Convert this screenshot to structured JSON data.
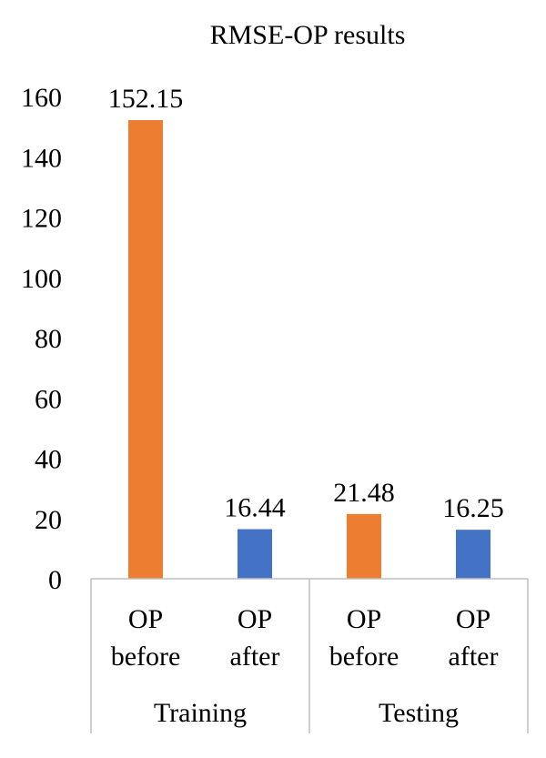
{
  "chart_data": {
    "type": "bar",
    "title": "RMSE-OP results",
    "xlabel": "",
    "ylabel": "",
    "ylim": [
      0,
      160
    ],
    "yticks": [
      0,
      20,
      40,
      60,
      80,
      100,
      120,
      140,
      160
    ],
    "grid": false,
    "legend": "none",
    "groups": [
      {
        "name": "Training",
        "bars": [
          {
            "label_line1": "OP",
            "label_line2": "before",
            "value": 152.15,
            "value_label": "152.15",
            "color": "#ED7D31"
          },
          {
            "label_line1": "OP",
            "label_line2": "after",
            "value": 16.44,
            "value_label": "16.44",
            "color": "#4472C4"
          }
        ]
      },
      {
        "name": "Testing",
        "bars": [
          {
            "label_line1": "OP",
            "label_line2": "before",
            "value": 21.48,
            "value_label": "21.48",
            "color": "#ED7D31"
          },
          {
            "label_line1": "OP",
            "label_line2": "after",
            "value": 16.25,
            "value_label": "16.25",
            "color": "#4472C4"
          }
        ]
      }
    ]
  }
}
